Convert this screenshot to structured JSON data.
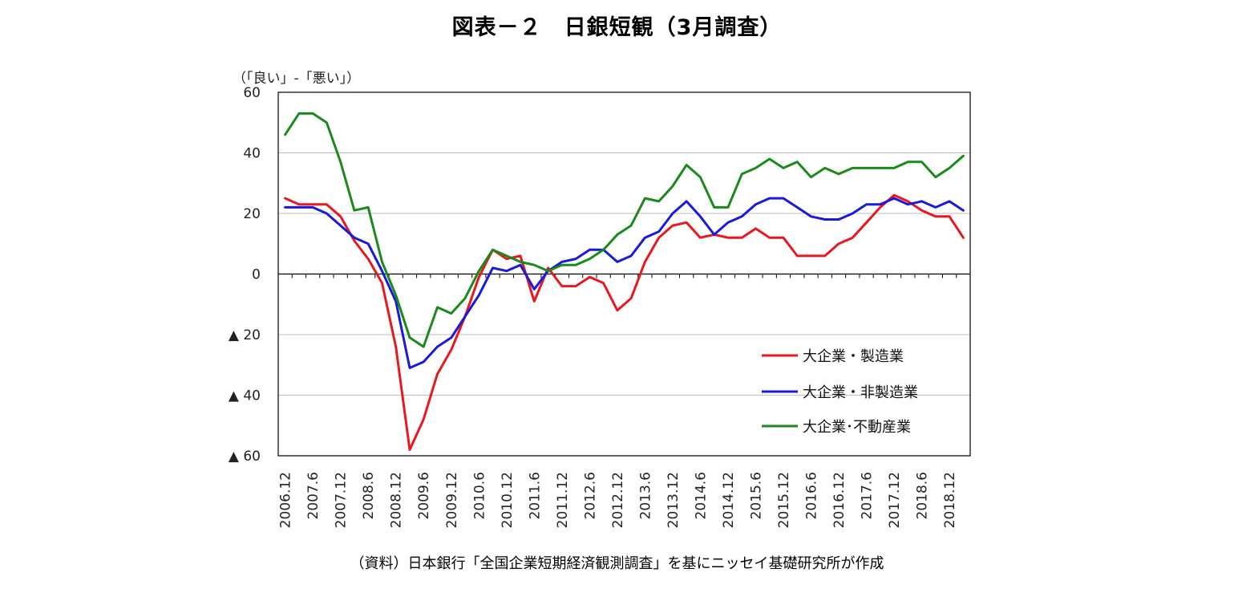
{
  "chart_data": {
    "type": "line",
    "title": "図表－２　日銀短観（3月調査）",
    "ylabel": "（「良い」-「悪い」）",
    "source": "（資料）日本銀行「全国企業短期経済観測調査」を基にニッセイ基礎研究所が作成",
    "ylim": [
      -60,
      60
    ],
    "yticks": [
      60,
      40,
      20,
      0,
      -20,
      -40,
      -60
    ],
    "ytick_labels": [
      "60",
      "40",
      "20",
      "0",
      "▲ 20",
      "▲ 40",
      "▲ 60"
    ],
    "x_labels": [
      "2006.12",
      "2007.6",
      "2007.12",
      "2008.6",
      "2008.12",
      "2009.6",
      "2009.12",
      "2010.6",
      "2010.12",
      "2011.6",
      "2011.12",
      "2012.6",
      "2012.12",
      "2013.6",
      "2013.12",
      "2014.6",
      "2014.12",
      "2015.6",
      "2015.12",
      "2016.6",
      "2016.12",
      "2017.6",
      "2017.12",
      "2018.6",
      "2018.12"
    ],
    "grid": true,
    "legend_position": "lower-right",
    "series": [
      {
        "name": "大企業・製造業",
        "color": "#e8191e",
        "values": [
          25,
          23,
          23,
          23,
          19,
          11,
          5,
          -3,
          -24,
          -58,
          -48,
          -33,
          -25,
          -14,
          -1,
          8,
          5,
          6,
          -9,
          2,
          -4,
          -4,
          -1,
          -3,
          -12,
          -8,
          4,
          12,
          16,
          17,
          12,
          13,
          12,
          12,
          15,
          12,
          12,
          6,
          6,
          6,
          10,
          12,
          17,
          22,
          26,
          24,
          21,
          19,
          19,
          12
        ]
      },
      {
        "name": "大企業・非製造業",
        "color": "#1a1adb",
        "values": [
          22,
          22,
          22,
          20,
          16,
          12,
          10,
          1,
          -9,
          -31,
          -29,
          -24,
          -21,
          -14,
          -7,
          2,
          1,
          3,
          -5,
          1,
          4,
          5,
          8,
          8,
          4,
          6,
          12,
          14,
          20,
          24,
          19,
          13,
          17,
          19,
          23,
          25,
          25,
          22,
          19,
          18,
          18,
          20,
          23,
          23,
          25,
          23,
          24,
          22,
          24,
          21
        ]
      },
      {
        "name": "大企業･不動産業",
        "color": "#1a8a1a",
        "values": [
          46,
          53,
          53,
          50,
          37,
          21,
          22,
          4,
          -7,
          -21,
          -24,
          -11,
          -13,
          -8,
          1,
          8,
          6,
          4,
          3,
          1,
          3,
          3,
          5,
          8,
          13,
          16,
          25,
          24,
          29,
          36,
          32,
          22,
          22,
          33,
          35,
          38,
          35,
          37,
          32,
          35,
          33,
          35,
          35,
          35,
          35,
          37,
          37,
          32,
          35,
          39
        ]
      }
    ]
  }
}
